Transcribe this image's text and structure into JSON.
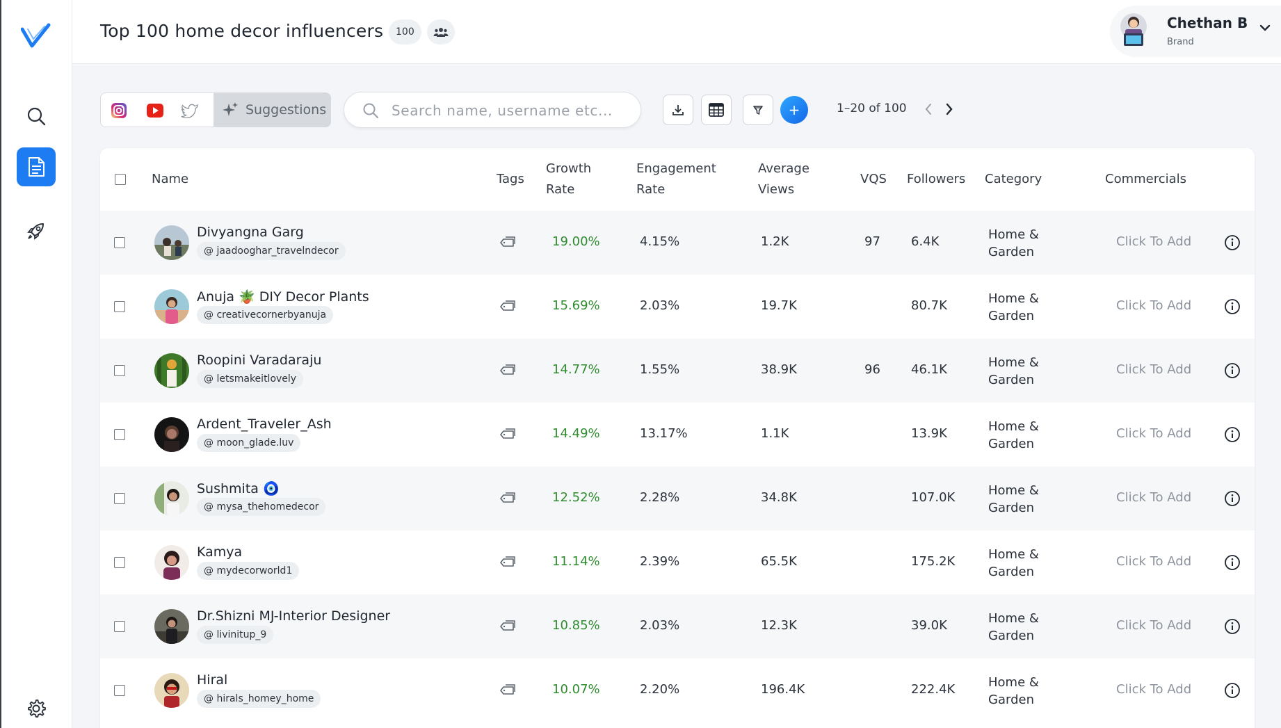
{
  "app": {
    "brand_color": "#1e7cf2"
  },
  "sidebar": {
    "items": [
      {
        "name": "search",
        "icon": "search-icon"
      },
      {
        "name": "lists",
        "icon": "document-icon",
        "active": true
      },
      {
        "name": "campaigns",
        "icon": "rocket-icon"
      },
      {
        "name": "settings",
        "icon": "gear-icon"
      }
    ]
  },
  "header": {
    "title": "Top 100 home decor influencers",
    "count": "100",
    "user": {
      "name": "Chethan B",
      "role": "Brand"
    }
  },
  "toolbar": {
    "platforms": [
      "instagram-icon",
      "youtube-icon",
      "twitter-icon"
    ],
    "suggestions_label": "Suggestions",
    "search_placeholder": "Search name, username etc...",
    "pagination": "1–20 of 100"
  },
  "table": {
    "columns": {
      "name": "Name",
      "tags": "Tags",
      "growth_1": "Growth",
      "growth_2": "Rate",
      "engagement_1": "Engagement",
      "engagement_2": "Rate",
      "views_1": "Average",
      "views_2": "Views",
      "vqs": "VQS",
      "followers": "Followers",
      "category": "Category",
      "commercials": "Commercials"
    },
    "rows": [
      {
        "name": "Divyangna Garg",
        "handle": "@ jaadooghar_travelndecor",
        "growth": "19.00%",
        "engagement": "4.15%",
        "views": "1.2K",
        "vqs": "97",
        "followers": "6.4K",
        "category_1": "Home &",
        "category_2": "Garden",
        "commercials": "Click To Add"
      },
      {
        "name": "Anuja 🪴 DIY Decor Plants",
        "handle": "@ creativecornerbyanuja",
        "growth": "15.69%",
        "engagement": "2.03%",
        "views": "19.7K",
        "vqs": "",
        "followers": "80.7K",
        "category_1": "Home &",
        "category_2": "Garden",
        "commercials": "Click To Add"
      },
      {
        "name": "Roopini Varadaraju",
        "handle": "@ letsmakeitlovely",
        "growth": "14.77%",
        "engagement": "1.55%",
        "views": "38.9K",
        "vqs": "96",
        "followers": "46.1K",
        "category_1": "Home &",
        "category_2": "Garden",
        "commercials": "Click To Add"
      },
      {
        "name": "Ardent_Traveler_Ash",
        "handle": "@ moon_glade.luv",
        "growth": "14.49%",
        "engagement": "13.17%",
        "views": "1.1K",
        "vqs": "",
        "followers": "13.9K",
        "category_1": "Home &",
        "category_2": "Garden",
        "commercials": "Click To Add"
      },
      {
        "name": "Sushmita 🧿",
        "handle": "@ mysa_thehomedecor",
        "growth": "12.52%",
        "engagement": "2.28%",
        "views": "34.8K",
        "vqs": "",
        "followers": "107.0K",
        "category_1": "Home &",
        "category_2": "Garden",
        "commercials": "Click To Add"
      },
      {
        "name": "Kamya",
        "handle": "@ mydecorworld1",
        "growth": "11.14%",
        "engagement": "2.39%",
        "views": "65.5K",
        "vqs": "",
        "followers": "175.2K",
        "category_1": "Home &",
        "category_2": "Garden",
        "commercials": "Click To Add"
      },
      {
        "name": "Dr.Shizni MJ-Interior Designer",
        "handle": "@ livinitup_9",
        "growth": "10.85%",
        "engagement": "2.03%",
        "views": "12.3K",
        "vqs": "",
        "followers": "39.0K",
        "category_1": "Home &",
        "category_2": "Garden",
        "commercials": "Click To Add"
      },
      {
        "name": "Hiral",
        "handle": "@ hirals_homey_home",
        "growth": "10.07%",
        "engagement": "2.20%",
        "views": "196.4K",
        "vqs": "",
        "followers": "222.4K",
        "category_1": "Home &",
        "category_2": "Garden",
        "commercials": "Click To Add"
      }
    ]
  }
}
